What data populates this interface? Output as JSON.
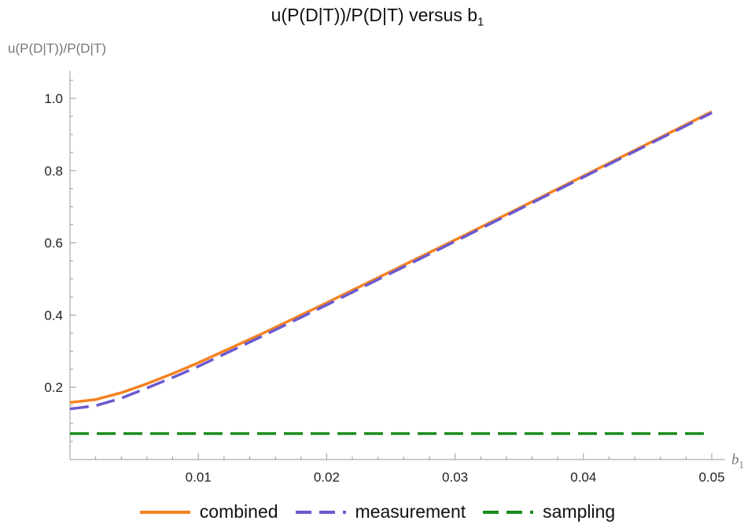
{
  "chart_data": {
    "type": "line",
    "title": "u(P(D|T))/P(D|T) versus b",
    "title_sub": "1",
    "ylabel": "u(P(D|T))/P(D|T)",
    "xlabel": "b",
    "xlabel_sub": "1",
    "xlim": [
      0,
      0.05
    ],
    "ylim": [
      0,
      1.08
    ],
    "xticks": [
      0.01,
      0.02,
      0.03,
      0.04,
      0.05
    ],
    "xtick_labels": [
      "0.01",
      "0.02",
      "0.03",
      "0.04",
      "0.05"
    ],
    "yticks": [
      0.2,
      0.4,
      0.6,
      0.8,
      1.0
    ],
    "ytick_labels": [
      "0.2",
      "0.4",
      "0.6",
      "0.8",
      "1.0"
    ],
    "grid": false,
    "legend_position": "bottom",
    "series": [
      {
        "name": "combined",
        "color": "#f58220",
        "dash": "solid",
        "x": [
          0,
          0.002,
          0.004,
          0.006,
          0.008,
          0.01,
          0.015,
          0.02,
          0.025,
          0.03,
          0.035,
          0.04,
          0.045,
          0.05
        ],
        "y": [
          0.158,
          0.166,
          0.185,
          0.21,
          0.238,
          0.268,
          0.349,
          0.434,
          0.521,
          0.608,
          0.696,
          0.785,
          0.874,
          0.963
        ]
      },
      {
        "name": "measurement",
        "color": "#6a5acd",
        "dash": "long-dash",
        "x": [
          0,
          0.002,
          0.004,
          0.006,
          0.008,
          0.01,
          0.015,
          0.02,
          0.025,
          0.03,
          0.035,
          0.04,
          0.045,
          0.05
        ],
        "y": [
          0.14,
          0.149,
          0.17,
          0.198,
          0.227,
          0.258,
          0.342,
          0.428,
          0.516,
          0.604,
          0.693,
          0.782,
          0.871,
          0.96
        ]
      },
      {
        "name": "sampling",
        "color": "#1a8a1a",
        "dash": "long-dash",
        "x": [
          0,
          0.05
        ],
        "y": [
          0.072,
          0.072
        ]
      }
    ]
  }
}
